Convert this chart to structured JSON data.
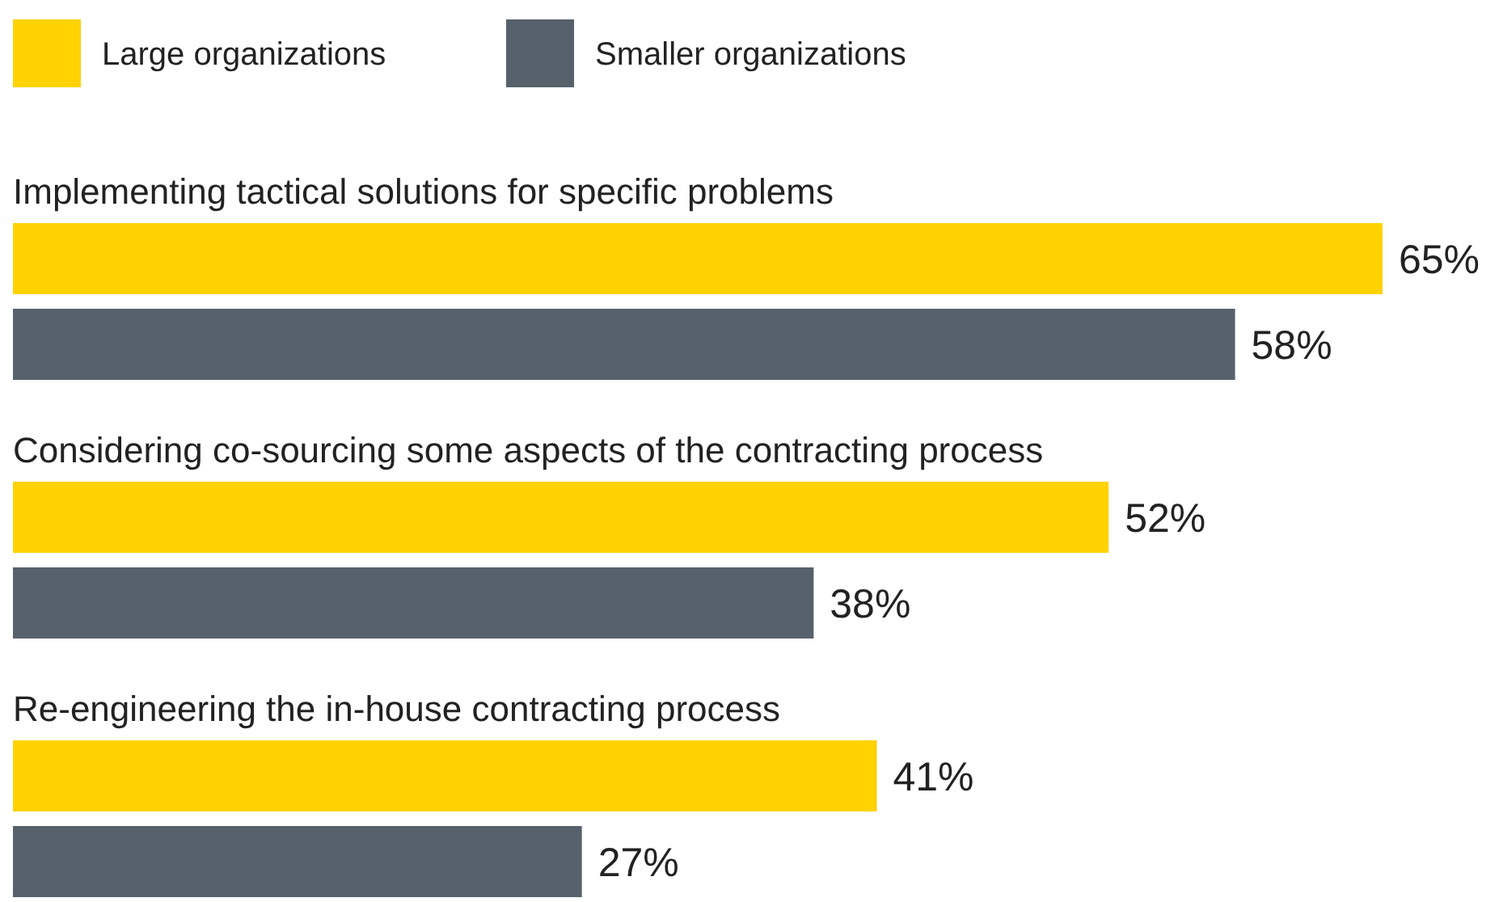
{
  "chart_data": {
    "type": "bar",
    "orientation": "horizontal",
    "legend": "top left",
    "categories": [
      "Implementing tactical solutions for specific problems",
      "Considering co-sourcing some aspects of the contracting process",
      "Re-engineering the in-house contracting process"
    ],
    "series": [
      {
        "name": "Large organizations",
        "color": "#ffd200",
        "values": [
          65,
          52,
          41
        ],
        "value_labels": [
          "65%",
          "52%",
          "41%"
        ]
      },
      {
        "name": "Smaller organizations",
        "color": "#56616b",
        "values": [
          58,
          38,
          27
        ],
        "value_labels": [
          "58%",
          "38%",
          "27%"
        ]
      }
    ]
  }
}
